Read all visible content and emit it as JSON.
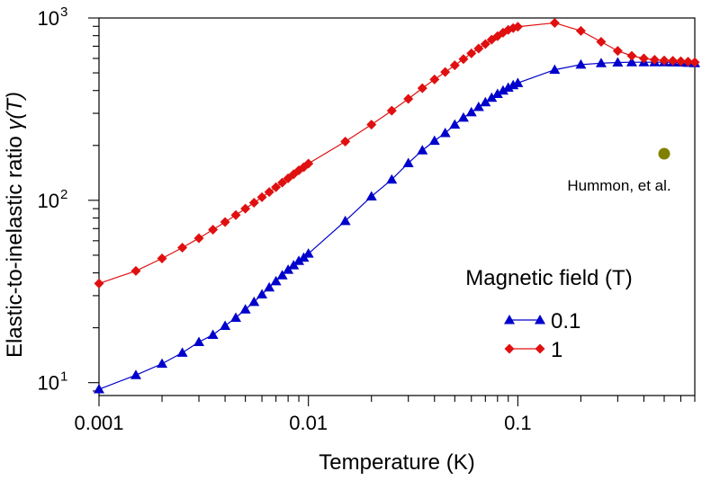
{
  "chart_data": {
    "type": "scatter",
    "xlabel": "Temperature (K)",
    "ylabel_text": "Elastic-to-inelastic ratio ",
    "ylabel_symbol": "γ(T)",
    "xscale": "log",
    "yscale": "log",
    "xlim": [
      0.001,
      0.7
    ],
    "ylim": [
      8.5,
      1000
    ],
    "x_ticks": [
      {
        "value": 0.001,
        "label": "0.001"
      },
      {
        "value": 0.01,
        "label": "0.01"
      },
      {
        "value": 0.1,
        "label": "0.1"
      }
    ],
    "y_ticks": [
      {
        "value": 10,
        "base": "10",
        "exp": "1"
      },
      {
        "value": 100,
        "base": "10",
        "exp": "2"
      },
      {
        "value": 1000,
        "base": "10",
        "exp": "3"
      }
    ],
    "grid": false,
    "legend": {
      "title": "Magnetic field (T)",
      "placement": "bottom-right"
    },
    "series": [
      {
        "name": "0.1",
        "color": "#0000cc",
        "marker": "triangle",
        "x": [
          0.001,
          0.0015,
          0.002,
          0.0025,
          0.003,
          0.0035,
          0.004,
          0.0045,
          0.005,
          0.0055,
          0.006,
          0.0065,
          0.007,
          0.0075,
          0.008,
          0.0085,
          0.009,
          0.0095,
          0.01,
          0.015,
          0.02,
          0.025,
          0.03,
          0.035,
          0.04,
          0.045,
          0.05,
          0.055,
          0.06,
          0.065,
          0.07,
          0.075,
          0.08,
          0.085,
          0.09,
          0.095,
          0.1,
          0.15,
          0.2,
          0.25,
          0.3,
          0.35,
          0.4,
          0.45,
          0.5,
          0.55,
          0.6,
          0.65,
          0.7
        ],
        "y": [
          9.2,
          11.0,
          12.7,
          14.6,
          16.7,
          18.3,
          20.5,
          22.7,
          25.2,
          27.7,
          30.5,
          33.3,
          36.0,
          38.8,
          41.6,
          44.0,
          46.5,
          48.5,
          51,
          77,
          105,
          130,
          160,
          188,
          212,
          234,
          260,
          284,
          304,
          325,
          345,
          365,
          383,
          400,
          415,
          428,
          440,
          520,
          555,
          565,
          570,
          572,
          572,
          572,
          572,
          571,
          570,
          568,
          565
        ]
      },
      {
        "name": "1",
        "color": "#e01010",
        "marker": "diamond",
        "x": [
          0.001,
          0.0015,
          0.002,
          0.0025,
          0.003,
          0.0035,
          0.004,
          0.0045,
          0.005,
          0.0055,
          0.006,
          0.0065,
          0.007,
          0.0075,
          0.008,
          0.0085,
          0.009,
          0.0095,
          0.01,
          0.015,
          0.02,
          0.025,
          0.03,
          0.035,
          0.04,
          0.045,
          0.05,
          0.055,
          0.06,
          0.065,
          0.07,
          0.075,
          0.08,
          0.085,
          0.09,
          0.095,
          0.1,
          0.15,
          0.2,
          0.25,
          0.3,
          0.35,
          0.4,
          0.45,
          0.5,
          0.55,
          0.6,
          0.65,
          0.7
        ],
        "y": [
          35,
          41,
          48,
          55,
          62,
          69,
          76,
          83,
          90,
          97,
          104,
          111,
          118,
          125,
          132,
          139,
          146,
          152,
          159,
          210,
          260,
          310,
          360,
          412,
          460,
          505,
          550,
          595,
          640,
          680,
          720,
          760,
          795,
          830,
          860,
          880,
          895,
          940,
          850,
          740,
          660,
          620,
          600,
          590,
          585,
          582,
          579,
          576,
          572
        ]
      }
    ],
    "reference_point": {
      "label": "Hummon, et al.",
      "x": 0.5,
      "y": 180,
      "color": "#808000"
    }
  }
}
